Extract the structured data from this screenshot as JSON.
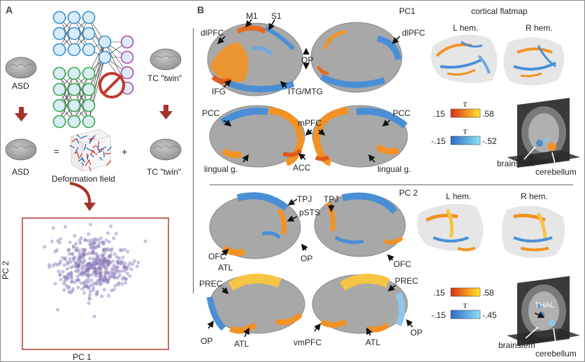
{
  "panel_a": {
    "letter": "A",
    "asd_label": "ASD",
    "tc_twin_label": "TC \"twin\"",
    "asd_label_2": "ASD",
    "equals": "=",
    "plus": "+",
    "deformation_label": "Deformation field",
    "tc_twin_label_2": "TC \"twin\"",
    "scatter_xlabel": "PC 1",
    "scatter_ylabel": "PC 2"
  },
  "panel_b": {
    "letter": "B",
    "pc1_title": "PC1",
    "pc2_title": "PC 2",
    "flatmap_title": "cortical flatmap",
    "l_hem": "L hem.",
    "r_hem": "R hem.",
    "l_hem_2": "L hem.",
    "r_hem_2": "R hem.",
    "pc1_labels": {
      "m1": "M1",
      "s1": "S1",
      "dlpfc_left": "dlPFC",
      "dlpfc_right": "dlPFC",
      "op": "OP",
      "ifg": "IFG",
      "itg_mtg": "ITG/MTG",
      "pcc_left": "PCC",
      "mpfc": "mPFC",
      "pcc_right": "PCC",
      "lingual_left": "lingual g.",
      "acc": "ACC",
      "lingual_right": "lingual g.",
      "brainstem": "brainstem",
      "cerebellum": "cerebellum"
    },
    "pc1_scale": {
      "pos_min": ".15",
      "pos_max": ".58",
      "neg_min": "-.15",
      "neg_max": "-.52",
      "tau": "τ"
    },
    "pc2_labels": {
      "tpj_left": "TPJ",
      "tpj_right": "TPJ",
      "psts": "pSTS",
      "ofc_left": "OFC",
      "atl_top": "ATL",
      "op_top": "OP",
      "ofc_right": "OFC",
      "prec_left": "PREC",
      "prec_right": "PREC",
      "op_left": "OP",
      "atl_left": "ATL",
      "vmpfc": "vmPFC",
      "atl_right": "ATL",
      "op_right": "OP",
      "thal": "THAL",
      "brainstem": "brainstem",
      "cerebellum": "cerebellum"
    },
    "pc2_scale": {
      "pos_min": ".15",
      "pos_max": ".58",
      "neg_min": "-.15",
      "neg_max": "-.45",
      "tau": "τ"
    }
  },
  "colors": {
    "brain_gray": "#a9a9a9",
    "hot": "#f08a1c",
    "hot_light": "#f7c544",
    "cool": "#4a90d9",
    "cool_light": "#8fc6ec",
    "arrow_red": "#c0392b",
    "scatter_dot": "#8878b8"
  }
}
